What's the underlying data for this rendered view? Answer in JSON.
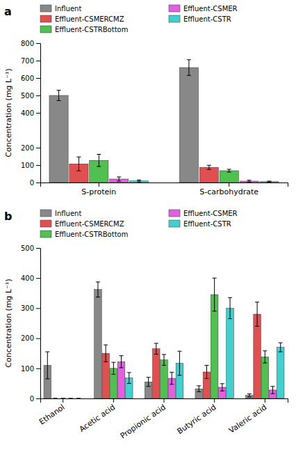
{
  "chart_data": [
    {
      "type": "bar",
      "title": "a",
      "categories": [
        "S-protein",
        "S-carbohydrate"
      ],
      "series": [
        {
          "name": "Influent",
          "color": "#888888",
          "values": [
            500,
            660
          ],
          "errors": [
            30,
            45
          ]
        },
        {
          "name": "Effluent-CSMERCMZ",
          "color": "#e05050",
          "values": [
            107,
            87
          ],
          "errors": [
            40,
            12
          ]
        },
        {
          "name": "Effluent-CSTRBottom",
          "color": "#50c050",
          "values": [
            127,
            68
          ],
          "errors": [
            35,
            8
          ]
        },
        {
          "name": "Effluent-CSMER",
          "color": "#e060e0",
          "values": [
            20,
            8
          ],
          "errors": [
            12,
            5
          ]
        },
        {
          "name": "Effluent-CSTR",
          "color": "#40d0d0",
          "values": [
            9,
            5
          ],
          "errors": [
            5,
            3
          ]
        }
      ],
      "ylabel": "Concentration (mg L⁻¹)",
      "ylim": [
        0,
        800
      ],
      "yticks": [
        0,
        100,
        200,
        400,
        500,
        600,
        700,
        800
      ],
      "grid": false,
      "legend": "top"
    },
    {
      "type": "bar",
      "title": "b",
      "categories": [
        "Ethanol",
        "Acetic acid",
        "Propionic acid",
        "Butyric acid",
        "Valeric acid"
      ],
      "series": [
        {
          "name": "Influent",
          "color": "#888888",
          "values": [
            110,
            362,
            55,
            32,
            10
          ],
          "errors": [
            45,
            25,
            15,
            10,
            5
          ]
        },
        {
          "name": "Effluent-CSMERCMZ",
          "color": "#e05050",
          "values": [
            0,
            150,
            165,
            88,
            280
          ],
          "errors": [
            0,
            28,
            18,
            22,
            40
          ]
        },
        {
          "name": "Effluent-CSTRBottom",
          "color": "#50c050",
          "values": [
            0,
            100,
            128,
            345,
            138
          ],
          "errors": [
            0,
            20,
            18,
            55,
            20
          ]
        },
        {
          "name": "Effluent-CSMER",
          "color": "#e060e0",
          "values": [
            0,
            122,
            67,
            37,
            28
          ],
          "errors": [
            0,
            20,
            20,
            12,
            12
          ]
        },
        {
          "name": "Effluent-CSTR",
          "color": "#40d0d0",
          "values": [
            0,
            68,
            117,
            300,
            170
          ],
          "errors": [
            0,
            18,
            40,
            35,
            15
          ]
        }
      ],
      "ylabel": "Concentration (mg L⁻¹)",
      "ylim": [
        0,
        500
      ],
      "yticks": [
        0,
        100,
        200,
        300,
        400,
        500
      ],
      "grid": false,
      "legend": "top"
    }
  ]
}
